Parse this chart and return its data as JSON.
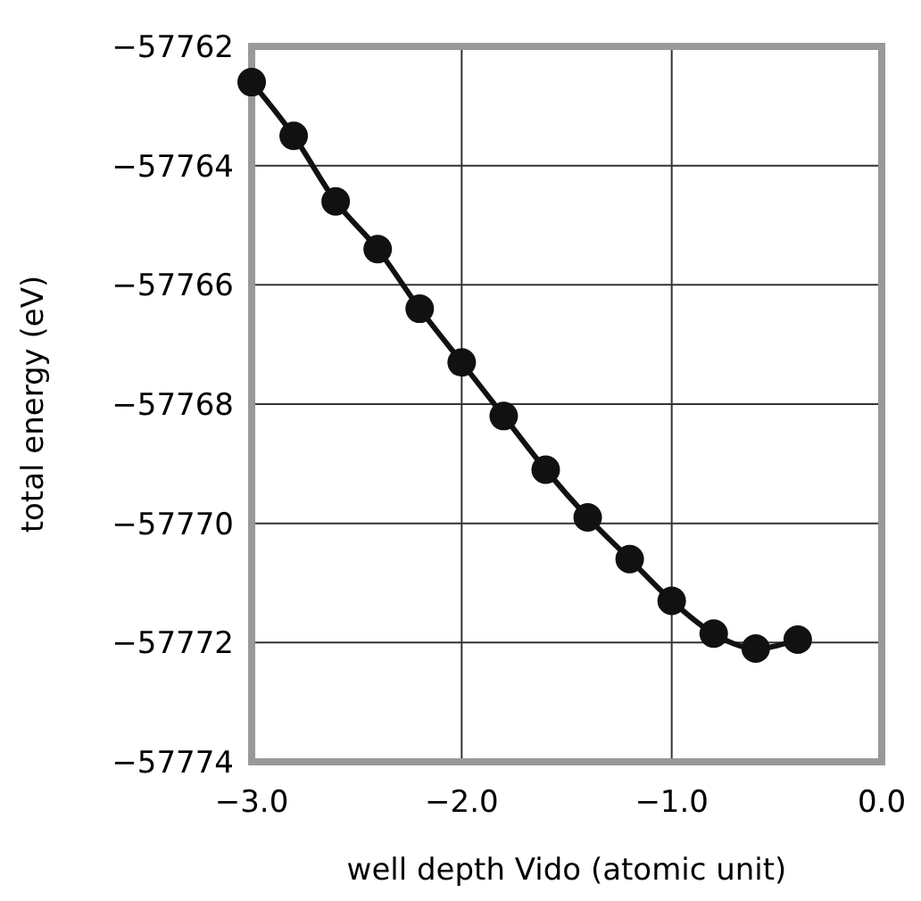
{
  "chart_data": {
    "type": "line",
    "xlabel": "well depth Vido (atomic unit)",
    "ylabel": "total energy (eV)",
    "x": [
      -3.0,
      -2.8,
      -2.6,
      -2.4,
      -2.2,
      -2.0,
      -1.8,
      -1.6,
      -1.4,
      -1.2,
      -1.0,
      -0.8,
      -0.6,
      -0.4
    ],
    "series": [
      {
        "color": "#111111",
        "values": [
          -57762.6,
          -57763.5,
          -57764.6,
          -57765.4,
          -57766.4,
          -57767.3,
          -57768.2,
          -57769.1,
          -57769.9,
          -57770.6,
          -57771.3,
          -57771.85,
          -57772.1,
          -57771.95
        ]
      }
    ],
    "xlim": [
      -3.0,
      0.0
    ],
    "ylim": [
      -57774,
      -57762
    ],
    "xticks": [
      {
        "value": -3.0,
        "label": "−3.0"
      },
      {
        "value": -2.0,
        "label": "−2.0"
      },
      {
        "value": -1.0,
        "label": "−1.0"
      },
      {
        "value": 0.0,
        "label": "0.0"
      }
    ],
    "yticks": [
      {
        "value": -57774,
        "label": "−57774"
      },
      {
        "value": -57772,
        "label": "−57772"
      },
      {
        "value": -57770,
        "label": "−57770"
      },
      {
        "value": -57768,
        "label": "−57768"
      },
      {
        "value": -57766,
        "label": "−57766"
      },
      {
        "value": -57764,
        "label": "−57764"
      },
      {
        "value": -57762,
        "label": "−57762"
      }
    ],
    "grid": true,
    "marker": "circle",
    "line_style": "solid"
  }
}
